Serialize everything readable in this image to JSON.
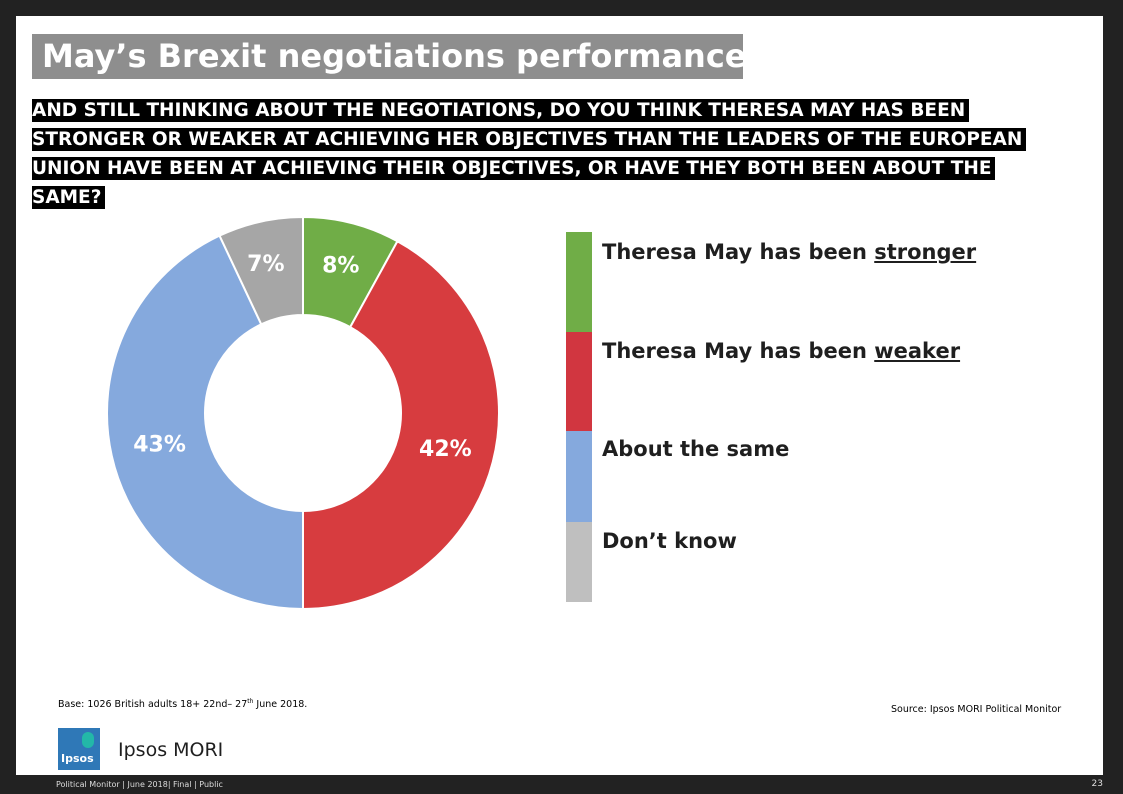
{
  "slide": {
    "title": "May’s Brexit negotiations performance",
    "question": "AND STILL THINKING ABOUT THE NEGOTIATIONS, DO YOU THINK THERESA MAY HAS BEEN STRONGER OR WEAKER AT ACHIEVING HER OBJECTIVES THAN THE LEADERS OF THE EUROPEAN UNION HAVE BEEN AT ACHIEVING THEIR OBJECTIVES, OR HAVE THEY BOTH BEEN ABOUT THE SAME?",
    "base": {
      "prefix": "Base:  1026 British adults 18+ 22nd– 27",
      "sup": "th",
      "suffix": " June 2018."
    },
    "source": "Source: Ipsos MORI Political Monitor",
    "brand": "Ipsos MORI",
    "logo_text": "Ipsos",
    "footer": "Political Monitor | June 2018| Final |  Public",
    "page_number": "23"
  },
  "chart_data": {
    "type": "pie",
    "subtype": "donut",
    "categories": [
      "Theresa May has been stronger",
      "Theresa May has been weaker",
      "About the same",
      "Don’t know"
    ],
    "values": [
      8,
      42,
      43,
      7
    ],
    "data_labels": [
      "8%",
      "42%",
      "43%",
      "7%"
    ],
    "colors": [
      "#70ad47",
      "#d73c3f",
      "#85a9dd",
      "#a6a6a6"
    ],
    "legend_colors": [
      "#70ad47",
      "#d13640",
      "#85a9dd",
      "#bfbfbf"
    ],
    "legend": [
      {
        "prefix": "Theresa May has been ",
        "emphasis": "stronger"
      },
      {
        "prefix": "Theresa May has been ",
        "emphasis": "weaker"
      },
      {
        "prefix": "About the same",
        "emphasis": ""
      },
      {
        "prefix": "Don’t know",
        "emphasis": ""
      }
    ],
    "label_colors": [
      "#ffffff",
      "#ffffff",
      "#ffffff",
      "#ffffff"
    ],
    "legend_position": "right"
  }
}
